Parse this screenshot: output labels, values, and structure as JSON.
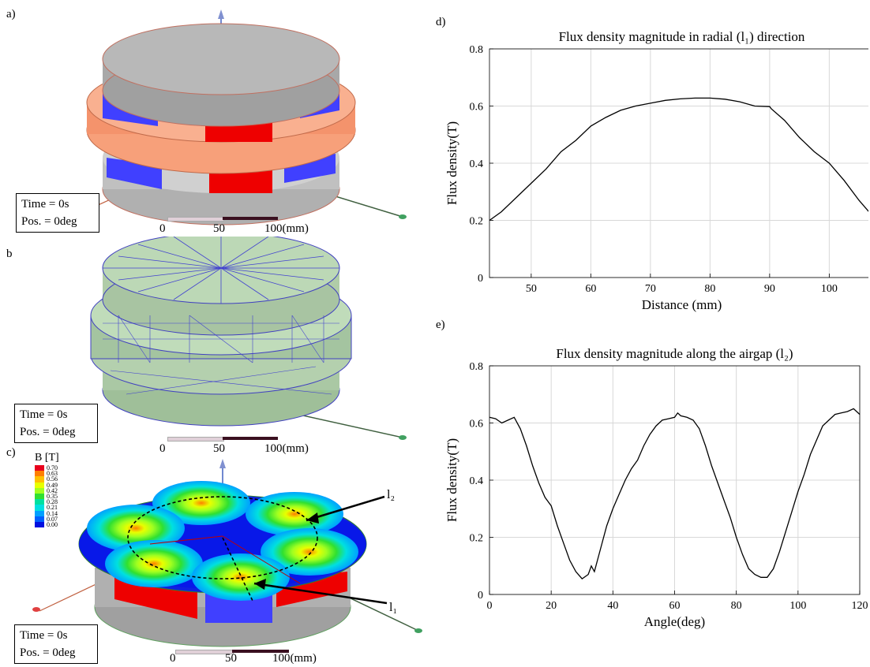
{
  "panels": {
    "a": "a)",
    "b": "b",
    "c": "c)",
    "d": "d)",
    "e": "e)"
  },
  "timebox": {
    "time": "Time = 0s",
    "pos": "Pos. = 0deg"
  },
  "scale": {
    "zero": "0",
    "fifty": "50",
    "hundred": "100(mm)"
  },
  "legend": {
    "title": "B [T]",
    "values": [
      "0.70",
      "0.63",
      "0.56",
      "0.49",
      "0.42",
      "0.35",
      "0.28",
      "0.21",
      "0.14",
      "0.07",
      "0.00"
    ],
    "colors": [
      "#e8001c",
      "#ff7f00",
      "#ffc000",
      "#e8ff00",
      "#a0ff20",
      "#30e030",
      "#00e0a0",
      "#00e0e0",
      "#00a0ff",
      "#0060ff",
      "#0010e0"
    ]
  },
  "line_labels": {
    "l1": "l₁",
    "l2": "l₂"
  },
  "chart_data": [
    {
      "type": "line",
      "title": "Flux density magnitude in radial (l₁) direction",
      "xlabel": "Distance (mm)",
      "ylabel": "Flux density(T)",
      "xlim": [
        43,
        107.5
      ],
      "ylim": [
        0,
        0.8
      ],
      "xticks": [
        50,
        60,
        70,
        80,
        90,
        100
      ],
      "yticks": [
        0,
        0.2,
        0.4,
        0.6,
        0.8
      ],
      "x": [
        43,
        45,
        47.5,
        50,
        52.5,
        55,
        57.5,
        60,
        62.5,
        65,
        67.5,
        70,
        72.5,
        75,
        77.5,
        80,
        82.5,
        85,
        87.5,
        90,
        90.3,
        92.5,
        95,
        97.5,
        100,
        102.5,
        105,
        107.5
      ],
      "y": [
        0.2,
        0.23,
        0.28,
        0.33,
        0.38,
        0.44,
        0.48,
        0.53,
        0.56,
        0.585,
        0.6,
        0.61,
        0.62,
        0.625,
        0.628,
        0.628,
        0.624,
        0.615,
        0.6,
        0.598,
        0.59,
        0.55,
        0.49,
        0.44,
        0.4,
        0.34,
        0.27,
        0.21
      ],
      "grid": true
    },
    {
      "type": "line",
      "title": "Flux density magnitude along the airgap (l₂)",
      "xlabel": "Angle(deg)",
      "ylabel": "Flux density(T)",
      "xlim": [
        0,
        120
      ],
      "ylim": [
        0,
        0.8
      ],
      "xticks": [
        0,
        20,
        40,
        60,
        80,
        100,
        120
      ],
      "yticks": [
        0,
        0.2,
        0.4,
        0.6,
        0.8
      ],
      "x": [
        0,
        2,
        4,
        6,
        8,
        10,
        12,
        14,
        16,
        18,
        20,
        22,
        24,
        26,
        28,
        30,
        32,
        33,
        34,
        36,
        38,
        40,
        42,
        44,
        46,
        48,
        50,
        52,
        54,
        56,
        58,
        60,
        61,
        62,
        64,
        66,
        68,
        70,
        72,
        74,
        76,
        78,
        80,
        82,
        84,
        86,
        88,
        90,
        92,
        94,
        96,
        98,
        100,
        102,
        104,
        106,
        108,
        110,
        112,
        114,
        116,
        118,
        120
      ],
      "y": [
        0.62,
        0.615,
        0.6,
        0.61,
        0.62,
        0.58,
        0.52,
        0.45,
        0.39,
        0.34,
        0.31,
        0.24,
        0.18,
        0.12,
        0.08,
        0.055,
        0.07,
        0.1,
        0.08,
        0.16,
        0.24,
        0.3,
        0.35,
        0.4,
        0.44,
        0.47,
        0.52,
        0.56,
        0.59,
        0.61,
        0.615,
        0.62,
        0.635,
        0.625,
        0.62,
        0.61,
        0.58,
        0.52,
        0.45,
        0.39,
        0.33,
        0.27,
        0.2,
        0.14,
        0.09,
        0.07,
        0.06,
        0.06,
        0.09,
        0.15,
        0.22,
        0.29,
        0.36,
        0.42,
        0.49,
        0.54,
        0.59,
        0.61,
        0.63,
        0.635,
        0.64,
        0.65,
        0.63
      ],
      "grid": true
    }
  ]
}
